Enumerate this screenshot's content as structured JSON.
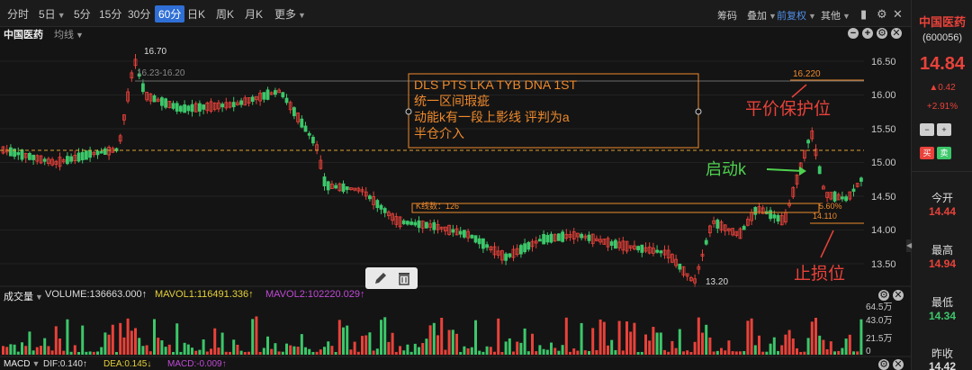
{
  "toolbar": {
    "periods": [
      "分时",
      "5日",
      "5分",
      "15分",
      "30分",
      "60分",
      "日K",
      "周K",
      "月K",
      "更多"
    ],
    "active_period": "60分",
    "right_items": [
      "筹码",
      "叠加",
      "前复权",
      "其他"
    ]
  },
  "chart_header": {
    "stock_name": "中国医药",
    "ma_label": "均线"
  },
  "price_axis": [
    "16.50",
    "16.00",
    "15.50",
    "15.00",
    "14.50",
    "14.00",
    "13.50"
  ],
  "annotations": {
    "high_marker": "16.70",
    "range_label": "16.23-16.20",
    "low_marker": "13.20",
    "box_lines": [
      "DLS  PTS  LKA  TYB  DNA  1ST",
      "统一区间瑕疵",
      "动能k有一段上影线 评判为a",
      "半仓介入"
    ],
    "protect_price": "16.220",
    "protect_label": "平价保护位",
    "start_label": "启动k",
    "stop_label": "止损位",
    "kline_count": "K线数：126",
    "box_price_1": "5.60%",
    "box_price_2": "14.110"
  },
  "volume": {
    "title": "成交量",
    "volume_value": "VOLUME:136663.000↑",
    "mavol1": "MAVOL1:116491.336↑",
    "mavol2": "MAVOL2:102220.029↑",
    "axis": [
      "64.5万",
      "43.0万",
      "21.5万",
      "0"
    ]
  },
  "macd": {
    "title": "MACD",
    "dif": "DIF:0.140↑",
    "dea": "DEA:0.145↓",
    "macd": "MACD:-0.009↑"
  },
  "quote": {
    "name": "中国医药",
    "code": "(600056)",
    "price": "14.84",
    "change": "0.42",
    "change_pct": "+2.91%",
    "buy": "买",
    "sell": "卖",
    "today_open_label": "今开",
    "today_open": "14.44",
    "high_label": "最高",
    "high": "14.94",
    "low_label": "最低",
    "low": "14.34",
    "prev_close_label": "昨收",
    "prev_close": "14.42"
  },
  "colors": {
    "up": "#e8423a",
    "down": "#3cc76a",
    "accent": "#2f6fd6",
    "annotation": "#ee8a2d"
  }
}
